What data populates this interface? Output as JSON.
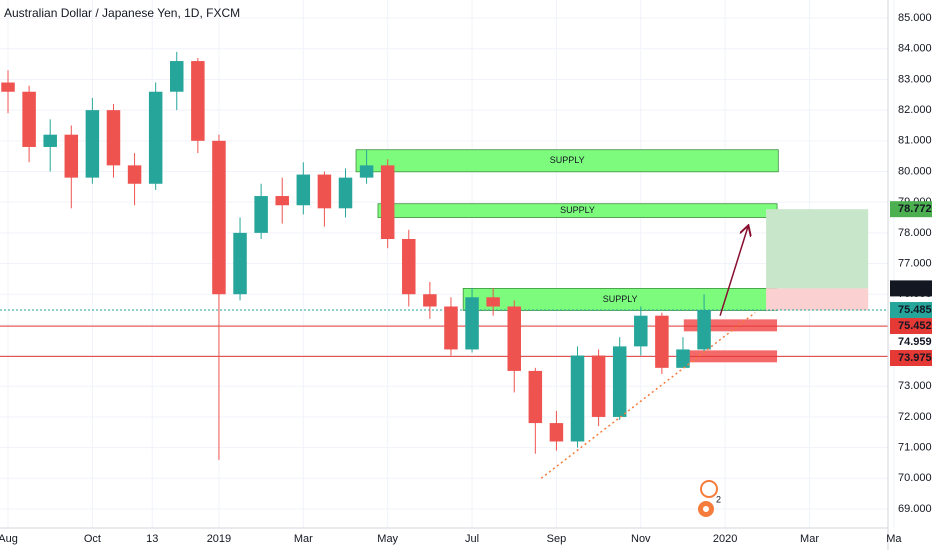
{
  "chart_data": {
    "type": "candlestick",
    "title": "Australian Dollar / Japanese Yen, 1D, FXCM",
    "up_color": "#26a69a",
    "down_color": "#ef5350",
    "grid": true,
    "x": [
      0,
      0.5,
      1,
      1.5,
      2,
      2.5,
      3,
      3.5,
      4,
      4.5,
      5,
      5.5,
      6,
      6.5,
      7,
      7.5,
      8,
      8.5,
      9,
      9.5,
      10,
      10.5,
      11,
      11.5,
      12,
      12.5,
      13,
      13.5,
      14,
      14.5,
      15,
      15.5,
      16,
      16.5
    ],
    "open": [
      82.9,
      82.6,
      80.8,
      81.2,
      79.8,
      82.0,
      80.2,
      79.6,
      82.6,
      83.6,
      81.0,
      76.0,
      78.0,
      79.2,
      78.9,
      79.9,
      78.8,
      79.8,
      80.2,
      77.8,
      76.0,
      75.6,
      74.2,
      75.9,
      75.6,
      73.5,
      71.8,
      71.2,
      74.0,
      72.0,
      74.3,
      75.3,
      73.6,
      74.2
    ],
    "high": [
      83.3,
      82.8,
      81.7,
      81.5,
      82.4,
      82.2,
      80.6,
      82.9,
      83.9,
      83.7,
      81.2,
      78.5,
      79.6,
      79.8,
      80.3,
      80.0,
      80.1,
      80.7,
      80.4,
      78.1,
      76.4,
      75.9,
      76.2,
      76.2,
      75.8,
      73.6,
      72.2,
      74.3,
      74.2,
      74.6,
      75.6,
      75.4,
      74.6,
      76.0
    ],
    "low": [
      81.9,
      80.3,
      80.0,
      78.8,
      79.6,
      79.8,
      78.9,
      79.4,
      82.0,
      80.6,
      70.6,
      75.8,
      77.8,
      78.3,
      78.6,
      78.2,
      78.5,
      79.6,
      77.5,
      75.6,
      75.2,
      74.0,
      74.1,
      75.3,
      72.8,
      70.8,
      70.9,
      71.0,
      71.7,
      71.9,
      74.0,
      73.4,
      73.6,
      74.1
    ],
    "close": [
      82.6,
      80.8,
      81.2,
      79.8,
      82.0,
      80.2,
      79.6,
      82.6,
      83.6,
      81.0,
      76.0,
      78.0,
      79.2,
      78.9,
      79.9,
      78.8,
      79.8,
      80.2,
      77.8,
      76.0,
      75.6,
      74.2,
      75.9,
      75.6,
      73.5,
      71.8,
      71.2,
      74.0,
      72.0,
      74.3,
      75.3,
      73.6,
      74.2,
      75.485
    ],
    "xlim": [
      -0.19,
      20.86
    ],
    "xticks": [
      {
        "value": 0,
        "label": "Aug"
      },
      {
        "value": 2,
        "label": "Oct"
      },
      {
        "value": 3.42,
        "label": "13"
      },
      {
        "value": 5,
        "label": "2019"
      },
      {
        "value": 7,
        "label": "Mar"
      },
      {
        "value": 9,
        "label": "May"
      },
      {
        "value": 11,
        "label": "Jul"
      },
      {
        "value": 13,
        "label": "Sep"
      },
      {
        "value": 15,
        "label": "Nov"
      },
      {
        "value": 17,
        "label": "2020"
      },
      {
        "value": 19,
        "label": "Mar"
      },
      {
        "value": 21,
        "label": "Ma"
      }
    ],
    "ylim": [
      68.38,
      85.59
    ],
    "yticks": [
      {
        "value": 69,
        "label": "69.000"
      },
      {
        "value": 70,
        "label": "70.000"
      },
      {
        "value": 71,
        "label": "71.000"
      },
      {
        "value": 72,
        "label": "72.000"
      },
      {
        "value": 73,
        "label": "73.000"
      },
      {
        "value": 74,
        "label": "74.000"
      },
      {
        "value": 75,
        "label": "75.000"
      },
      {
        "value": 76,
        "label": "76.000"
      },
      {
        "value": 77,
        "label": "77.000"
      },
      {
        "value": 78,
        "label": "78.000"
      },
      {
        "value": 79,
        "label": "79.000"
      },
      {
        "value": 80,
        "label": "80.000"
      },
      {
        "value": 81,
        "label": "81.000"
      },
      {
        "value": 82,
        "label": "82.000"
      },
      {
        "value": 83,
        "label": "83.000"
      },
      {
        "value": 84,
        "label": "84.000"
      },
      {
        "value": 85,
        "label": "85.000"
      }
    ],
    "zones": [
      {
        "label": "SUPPLY",
        "x": [
          8.25,
          18.26
        ],
        "y": [
          79.99,
          80.71
        ],
        "color": "#7dfb7d"
      },
      {
        "label": "SUPPLY",
        "x": [
          8.77,
          18.23
        ],
        "y": [
          78.5,
          78.95
        ],
        "color": "#7dfb7d"
      },
      {
        "label": "SUPPLY",
        "x": [
          10.79,
          18.23
        ],
        "y": [
          75.47,
          76.19
        ],
        "color": "#7dfb7d"
      },
      {
        "x": [
          16.02,
          18.23
        ],
        "y": [
          74.79,
          75.18
        ],
        "color": "#f46a6a"
      },
      {
        "x": [
          16.02,
          18.23
        ],
        "y": [
          73.78,
          74.17
        ],
        "color": "#f46a6a"
      },
      {
        "x": [
          17.97,
          20.39
        ],
        "y": [
          76.19,
          78.772
        ],
        "color": "#c8e6c9"
      },
      {
        "x": [
          17.97,
          20.39
        ],
        "y": [
          75.47,
          76.19
        ],
        "color": "#fbd0d0"
      }
    ],
    "hlines": [
      {
        "value": 74.959,
        "color": "#e53935",
        "dash": false
      },
      {
        "value": 73.975,
        "color": "#e53935",
        "dash": false
      },
      {
        "value": 75.485,
        "color": "#26a69a",
        "dash": true
      }
    ],
    "trendline": {
      "x": [
        12.64,
        17.71
      ],
      "y": [
        70.0,
        75.4
      ],
      "color": "#f57c3b"
    },
    "arrow": {
      "x": [
        16.88,
        17.54
      ],
      "y": [
        75.3,
        78.2
      ],
      "color": "#880e2f"
    },
    "price_labels": [
      {
        "value": 78.772,
        "label": "78.772",
        "color": "#4caf50",
        "text_color": "#ffffff"
      },
      {
        "value": 76.19,
        "label": "76.190",
        "color": "#131722",
        "text_color": "#ffffff"
      },
      {
        "value": 75.485,
        "label": "75.485",
        "color": "#26a69a",
        "text_color": "#ffffff"
      },
      {
        "value": 75.452,
        "label": "75.452",
        "color": "#e53935",
        "text_color": "#ffffff"
      },
      {
        "value": 74.959,
        "label": "74.959",
        "color": "#ffffff",
        "text_color": "#131722"
      },
      {
        "value": 73.975,
        "label": "73.975",
        "color": "#e53935",
        "text_color": "#ffffff"
      }
    ],
    "event_badge": "2"
  }
}
